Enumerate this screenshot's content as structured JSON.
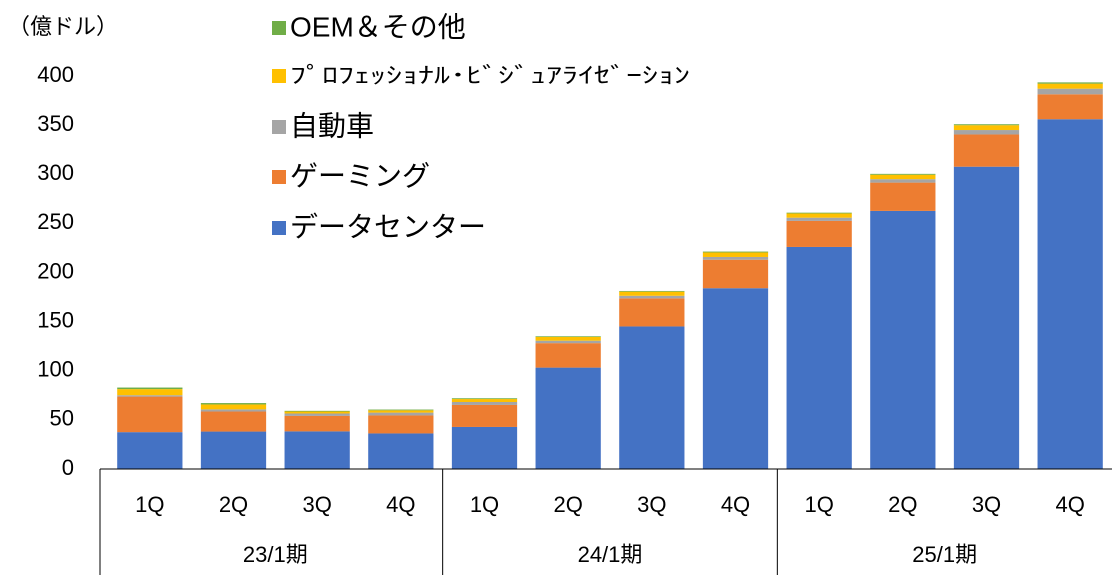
{
  "chart_data": {
    "type": "stacked_bar",
    "y_unit_label": "（億ドル）",
    "categories": [
      "1Q",
      "2Q",
      "3Q",
      "4Q",
      "1Q",
      "2Q",
      "3Q",
      "4Q",
      "1Q",
      "2Q",
      "3Q",
      "4Q"
    ],
    "group_labels": [
      "23/1期",
      "24/1期",
      "25/1期"
    ],
    "series": [
      {
        "name": "データセンター",
        "color": "#4472c4",
        "values": [
          37.5,
          38.1,
          38.3,
          36.2,
          42.8,
          103.2,
          145.1,
          184.0,
          226.0,
          262.7,
          307.7,
          356.0
        ]
      },
      {
        "name": "ゲーミング",
        "color": "#ed7d31",
        "values": [
          36.2,
          20.4,
          15.7,
          18.3,
          22.4,
          24.9,
          28.6,
          29.0,
          26.5,
          28.8,
          32.8,
          25.4
        ]
      },
      {
        "name": "自動車",
        "color": "#a5a5a5",
        "values": [
          1.4,
          2.2,
          2.5,
          2.9,
          3.0,
          2.5,
          2.6,
          2.8,
          3.3,
          3.5,
          4.5,
          5.7
        ]
      },
      {
        "name": "ﾌﾟﾛﾌｪｯｼｮﾅﾙ･ﾋﾞｼﾞｭｱﾗｲｾﾞｰｼｮﾝ",
        "color": "#ffc000",
        "values": [
          6.2,
          5.0,
          2.0,
          2.3,
          3.0,
          3.8,
          4.2,
          4.6,
          4.3,
          4.5,
          4.9,
          5.1
        ]
      },
      {
        "name": "OEM＆その他",
        "color": "#70ad47",
        "values": [
          1.6,
          1.4,
          0.7,
          0.8,
          0.8,
          0.7,
          0.7,
          0.9,
          0.8,
          0.9,
          1.0,
          1.3
        ]
      }
    ],
    "ylim": [
      0,
      400
    ],
    "yticks": [
      0,
      50,
      100,
      150,
      200,
      250,
      300,
      350,
      400
    ],
    "grid": false
  }
}
